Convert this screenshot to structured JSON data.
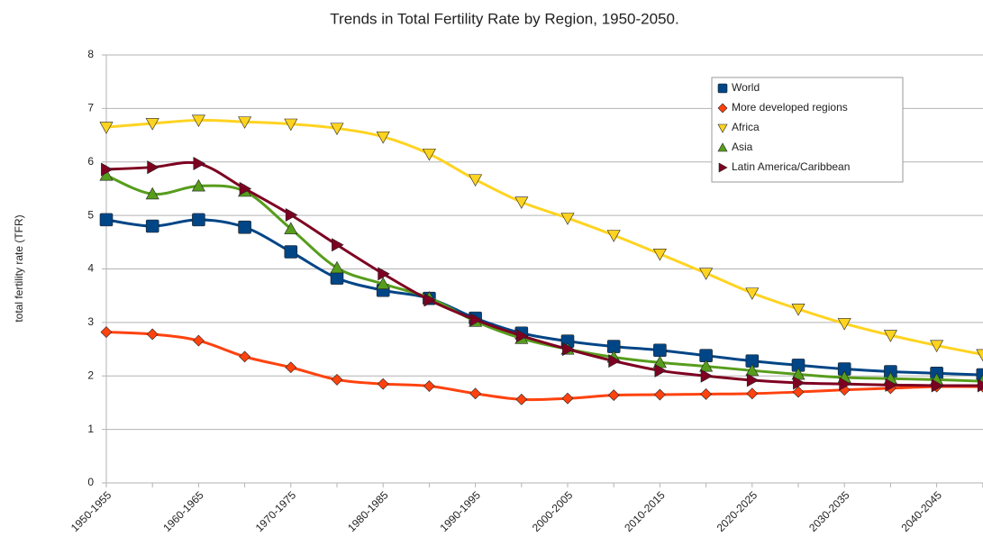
{
  "chart_data": {
    "type": "line",
    "title": "Trends in Total Fertility Rate by Region, 1950-2050.",
    "y_label": "total fertility rate (TFR)",
    "categories": [
      "1950-1955",
      null,
      "1960-1965",
      null,
      "1970-1975",
      null,
      "1980-1985",
      null,
      "1990-1995",
      null,
      "2000-2005",
      null,
      "2010-2015",
      null,
      "2020-2025",
      null,
      "2030-2035",
      null,
      "2040-2045",
      null
    ],
    "series": [
      {
        "name": "World",
        "color": "#004586",
        "marker": "square",
        "values": [
          4.92,
          4.8,
          4.92,
          4.78,
          4.32,
          3.83,
          3.6,
          3.45,
          3.08,
          2.8,
          2.65,
          2.55,
          2.48,
          2.38,
          2.28,
          2.2,
          2.13,
          2.08,
          2.05,
          2.02
        ]
      },
      {
        "name": "More developed regions",
        "color": "#ff420e",
        "marker": "diamond",
        "values": [
          2.82,
          2.78,
          2.66,
          2.36,
          2.16,
          1.93,
          1.85,
          1.81,
          1.67,
          1.56,
          1.58,
          1.64,
          1.65,
          1.66,
          1.67,
          1.7,
          1.74,
          1.77,
          1.8,
          1.8
        ]
      },
      {
        "name": "Africa",
        "color": "#ffd320",
        "marker": "triangle-down",
        "values": [
          6.65,
          6.72,
          6.78,
          6.75,
          6.71,
          6.63,
          6.47,
          6.15,
          5.67,
          5.25,
          4.95,
          4.63,
          4.28,
          3.92,
          3.55,
          3.25,
          2.98,
          2.76,
          2.57,
          2.4
        ]
      },
      {
        "name": "Asia",
        "color": "#579d1c",
        "marker": "triangle-up",
        "values": [
          5.75,
          5.4,
          5.55,
          5.45,
          4.75,
          4.02,
          3.72,
          3.46,
          3.02,
          2.7,
          2.5,
          2.35,
          2.25,
          2.18,
          2.1,
          2.03,
          1.97,
          1.95,
          1.93,
          1.9
        ]
      },
      {
        "name": "Latin America/Caribbean",
        "color": "#7e0021",
        "marker": "triangle-right",
        "values": [
          5.86,
          5.9,
          5.97,
          5.5,
          5.01,
          4.45,
          3.91,
          3.42,
          3.05,
          2.75,
          2.5,
          2.28,
          2.1,
          2.0,
          1.92,
          1.87,
          1.85,
          1.83,
          1.82,
          1.82
        ]
      }
    ],
    "ylim": [
      0,
      8
    ],
    "yticks": [
      0,
      1,
      2,
      3,
      4,
      5,
      6,
      7,
      8
    ],
    "grid": true,
    "smooth": true,
    "legend": "top-right"
  }
}
